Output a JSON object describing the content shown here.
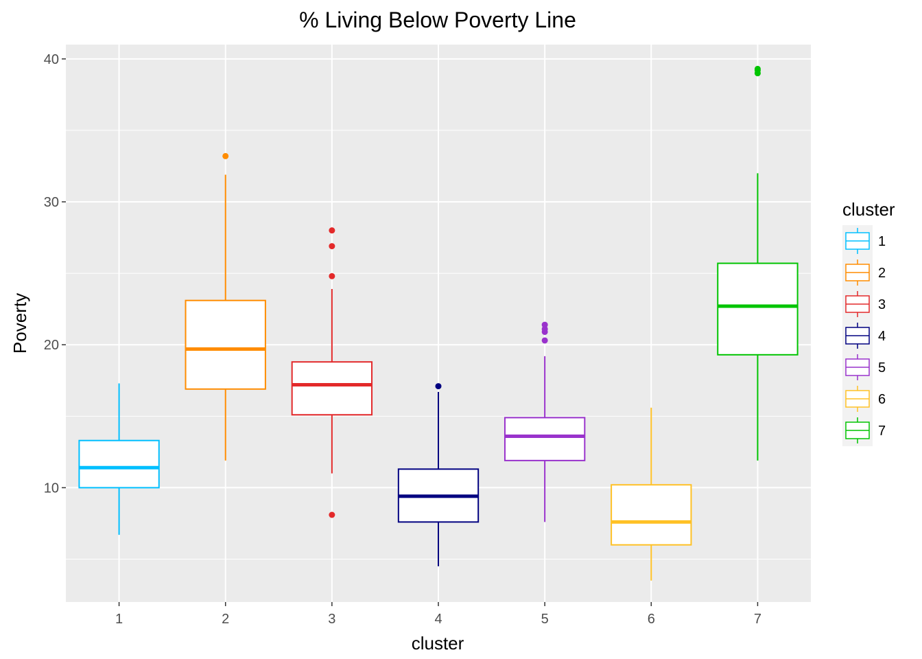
{
  "chart_data": {
    "type": "boxplot",
    "title": "% Living Below Poverty Line",
    "xlabel": "cluster",
    "ylabel": "Poverty",
    "ylim": [
      2.0,
      41.0
    ],
    "yticks": [
      10,
      20,
      30,
      40
    ],
    "grid": true,
    "legend": {
      "title": "cluster",
      "position": "right"
    },
    "categories": [
      "1",
      "2",
      "3",
      "4",
      "5",
      "6",
      "7"
    ],
    "series": [
      {
        "name": "1",
        "color": "#00BFFF",
        "whisker_low": 6.7,
        "q1": 10.0,
        "median": 11.4,
        "q3": 13.3,
        "whisker_high": 17.3,
        "outliers": []
      },
      {
        "name": "2",
        "color": "#FF8C00",
        "whisker_low": 11.9,
        "q1": 16.9,
        "median": 19.7,
        "q3": 23.1,
        "whisker_high": 31.9,
        "outliers": [
          33.2
        ]
      },
      {
        "name": "3",
        "color": "#E3292A",
        "whisker_low": 11.0,
        "q1": 15.1,
        "median": 17.2,
        "q3": 18.8,
        "whisker_high": 23.9,
        "outliers": [
          8.1,
          24.8,
          26.9,
          28.0
        ]
      },
      {
        "name": "4",
        "color": "#000080",
        "whisker_low": 4.5,
        "q1": 7.6,
        "median": 9.4,
        "q3": 11.3,
        "whisker_high": 16.7,
        "outliers": [
          17.1
        ]
      },
      {
        "name": "5",
        "color": "#9932CC",
        "whisker_low": 7.6,
        "q1": 11.9,
        "median": 13.6,
        "q3": 14.9,
        "whisker_high": 19.2,
        "outliers": [
          20.3,
          20.9,
          21.1,
          21.4
        ]
      },
      {
        "name": "6",
        "color": "#FFC125",
        "whisker_low": 3.5,
        "q1": 6.0,
        "median": 7.6,
        "q3": 10.2,
        "whisker_high": 15.6,
        "outliers": []
      },
      {
        "name": "7",
        "color": "#00C400",
        "whisker_low": 11.9,
        "q1": 19.3,
        "median": 22.7,
        "q3": 25.7,
        "whisker_high": 32.0,
        "outliers": [
          39.0,
          39.2,
          39.3
        ]
      }
    ]
  }
}
